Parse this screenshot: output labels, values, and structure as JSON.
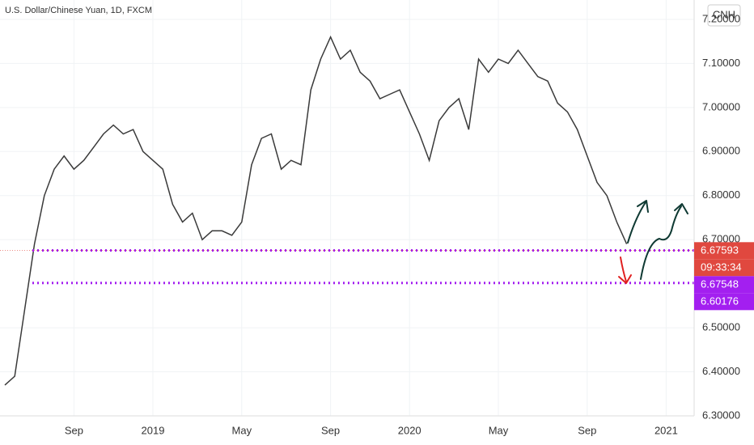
{
  "chart_data": {
    "type": "line",
    "title": "U.S. Dollar/Chinese Yuan, 1D, FXCM",
    "symbol_badge": "CNH",
    "color": "#3a3a3a",
    "grid": true,
    "categories": [
      null,
      null,
      null,
      null,
      null,
      null,
      null,
      "Sep",
      null,
      null,
      null,
      null,
      null,
      null,
      null,
      "2019",
      null,
      null,
      null,
      null,
      null,
      null,
      null,
      null,
      "May",
      null,
      null,
      null,
      null,
      null,
      null,
      null,
      null,
      "Sep",
      null,
      null,
      null,
      null,
      null,
      null,
      null,
      "2020",
      null,
      null,
      null,
      null,
      null,
      null,
      null,
      null,
      "May",
      null,
      null,
      null,
      null,
      null,
      null,
      null,
      null,
      "Sep",
      null,
      null,
      null,
      null,
      null,
      null,
      null,
      "2021",
      null,
      null,
      null
    ],
    "values": [
      6.37,
      6.39,
      6.54,
      6.69,
      6.8,
      6.86,
      6.89,
      6.86,
      6.88,
      6.91,
      6.94,
      6.96,
      6.94,
      6.95,
      6.9,
      6.88,
      6.86,
      6.78,
      6.74,
      6.76,
      6.7,
      6.72,
      6.72,
      6.71,
      6.74,
      6.87,
      6.93,
      6.94,
      6.86,
      6.88,
      6.87,
      7.04,
      7.11,
      7.16,
      7.11,
      7.13,
      7.08,
      7.06,
      7.02,
      7.03,
      7.04,
      6.99,
      6.94,
      6.88,
      6.97,
      7.0,
      7.02,
      6.95,
      7.11,
      7.08,
      7.11,
      7.1,
      7.13,
      7.1,
      7.07,
      7.06,
      7.01,
      6.99,
      6.95,
      6.89,
      6.83,
      6.8,
      6.74,
      6.69,
      null,
      null,
      null,
      null,
      null,
      null,
      null
    ],
    "ylim": [
      6.3,
      7.244
    ],
    "yticks": [
      {
        "value": 6.3,
        "label": "6.30000"
      },
      {
        "value": 6.4,
        "label": "6.40000"
      },
      {
        "value": 6.5,
        "label": "6.50000"
      },
      {
        "value": 6.7,
        "label": "6.70000"
      },
      {
        "value": 6.8,
        "label": "6.80000"
      },
      {
        "value": 6.9,
        "label": "6.90000"
      },
      {
        "value": 7.0,
        "label": "7.00000"
      },
      {
        "value": 7.1,
        "label": "7.10000"
      },
      {
        "value": 7.2,
        "label": "7.20000"
      }
    ],
    "last_price": {
      "value": 6.67593,
      "label": "6.67593",
      "color": "#e0483f"
    },
    "countdown": "09:33:34",
    "levels": [
      {
        "value": 6.67548,
        "label": "6.67548"
      },
      {
        "value": 6.60176,
        "label": "6.60176"
      }
    ],
    "level_color": "#a31ff0"
  }
}
